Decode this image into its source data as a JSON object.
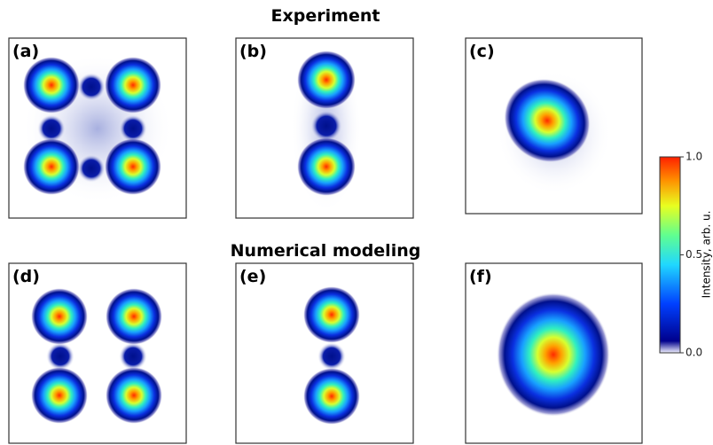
{
  "figure": {
    "sections": [
      {
        "title": "Experiment"
      },
      {
        "title": "Numerical modeling"
      }
    ],
    "panels": [
      {
        "label": "(a)"
      },
      {
        "label": "(b)"
      },
      {
        "label": "(c)"
      },
      {
        "label": "(d)"
      },
      {
        "label": "(e)"
      },
      {
        "label": "(f)"
      }
    ],
    "colorbar": {
      "label": "Intensity, arb. u.",
      "lim": [
        0,
        1
      ],
      "ticks": [
        {
          "value": 0,
          "label": "0.0"
        },
        {
          "value": 0.5,
          "label": "0.5"
        },
        {
          "value": 1,
          "label": "1.0"
        }
      ]
    }
  }
}
